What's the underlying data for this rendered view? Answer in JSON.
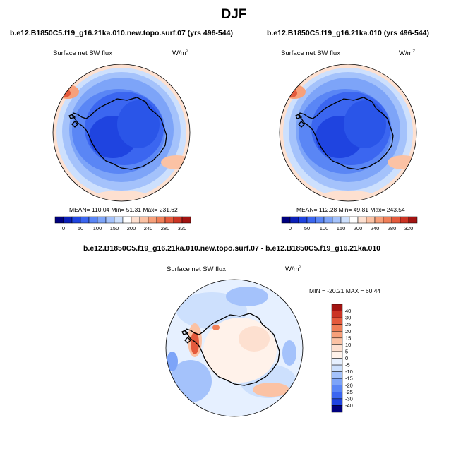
{
  "title": "DJF",
  "panels": [
    {
      "case": "b.e12.B1850C5.f19_g16.21ka.010.new.topo.surf.07 (yrs 496-544)",
      "variable": "Surface net SW flux",
      "units_base": "W/m",
      "units_exp": "2",
      "stats": {
        "mean_label": "MEAN=",
        "mean": "110.04",
        "min_label": "Min=",
        "min": "51.31",
        "max_label": "Max=",
        "max": "231.62"
      }
    },
    {
      "case": "b.e12.B1850C5.f19_g16.21ka.010 (yrs 496-544)",
      "variable": "Surface net SW flux",
      "units_base": "W/m",
      "units_exp": "2",
      "stats": {
        "mean_label": "MEAN=",
        "mean": "112.28",
        "min_label": "Min=",
        "min": "49.81",
        "max_label": "Max=",
        "max": "243.54"
      }
    }
  ],
  "diff": {
    "title": "b.e12.B1850C5.f19_g16.21ka.010.new.topo.surf.07 - b.e12.B1850C5.f19_g16.21ka.010",
    "variable": "Surface net SW flux",
    "units_base": "W/m",
    "units_exp": "2",
    "stats": {
      "min_label": "MIN =",
      "min": "-20.21",
      "max_label": "MAX =",
      "max": "60.44"
    }
  },
  "chart_data": [
    {
      "type": "heatmap",
      "projection": "polar-stereographic-south",
      "colorbar": {
        "orientation": "horizontal",
        "ticks": [
          "0",
          "50",
          "100",
          "150",
          "200",
          "240",
          "280",
          "320"
        ],
        "colors": [
          "#00007e",
          "#0b1fb8",
          "#1f44e0",
          "#3b66f0",
          "#5a86f5",
          "#7da4f8",
          "#a4c2fb",
          "#cde0fd",
          "#ffffff",
          "#fde0d0",
          "#fbc2a4",
          "#f7a07a",
          "#f07f58",
          "#e45a3c",
          "#cb3424",
          "#a21412"
        ]
      }
    },
    {
      "type": "heatmap",
      "projection": "polar-stereographic-south",
      "colorbar": {
        "orientation": "horizontal",
        "ticks": [
          "0",
          "50",
          "100",
          "150",
          "200",
          "240",
          "280",
          "320"
        ],
        "colors": [
          "#00007e",
          "#0b1fb8",
          "#1f44e0",
          "#3b66f0",
          "#5a86f5",
          "#7da4f8",
          "#a4c2fb",
          "#cde0fd",
          "#ffffff",
          "#fde0d0",
          "#fbc2a4",
          "#f7a07a",
          "#f07f58",
          "#e45a3c",
          "#cb3424",
          "#a21412"
        ]
      }
    },
    {
      "type": "heatmap",
      "projection": "polar-stereographic-south",
      "colorbar": {
        "orientation": "vertical",
        "ticks": [
          "40",
          "30",
          "25",
          "20",
          "15",
          "10",
          "5",
          "0",
          "-5",
          "-10",
          "-15",
          "-20",
          "-25",
          "-30",
          "-40"
        ],
        "colors": [
          "#a21412",
          "#cb3424",
          "#e45a3c",
          "#f07f58",
          "#f7a07a",
          "#fbc2a4",
          "#fde0d0",
          "#fff2ea",
          "#e6f0ff",
          "#cde0fd",
          "#a4c2fb",
          "#7da4f8",
          "#5a86f5",
          "#3b66f0",
          "#1f44e0",
          "#00007e"
        ]
      }
    }
  ]
}
